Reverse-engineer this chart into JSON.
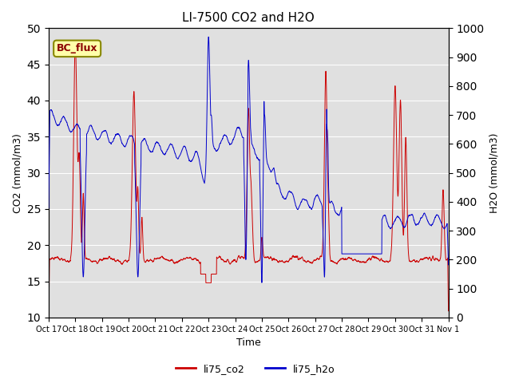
{
  "title": "LI-7500 CO2 and H2O",
  "xlabel": "Time",
  "ylabel_left": "CO2 (mmol/m3)",
  "ylabel_right": "H2O (mmol/m3)",
  "annotation": "BC_flux",
  "ylim_left": [
    10,
    50
  ],
  "ylim_right": [
    0,
    1000
  ],
  "yticks_left": [
    10,
    15,
    20,
    25,
    30,
    35,
    40,
    45,
    50
  ],
  "yticks_right": [
    0,
    100,
    200,
    300,
    400,
    500,
    600,
    700,
    800,
    900,
    1000
  ],
  "xtick_labels": [
    "Oct 17",
    "Oct 18",
    "Oct 19",
    "Oct 20",
    "Oct 21",
    "Oct 22",
    "Oct 23",
    "Oct 24",
    "Oct 25",
    "Oct 26",
    "Oct 27",
    "Oct 28",
    "Oct 29",
    "Oct 30",
    "Oct 31",
    "Nov 1"
  ],
  "co2_color": "#cc0000",
  "h2o_color": "#0000cc",
  "background_color": "#e0e0e0",
  "title_fontsize": 11,
  "legend_labels": [
    "li75_co2",
    "li75_h2o"
  ],
  "annotation_facecolor": "#ffffaa",
  "annotation_edgecolor": "#888800",
  "linewidth": 0.7,
  "figsize": [
    6.4,
    4.8
  ],
  "dpi": 100
}
